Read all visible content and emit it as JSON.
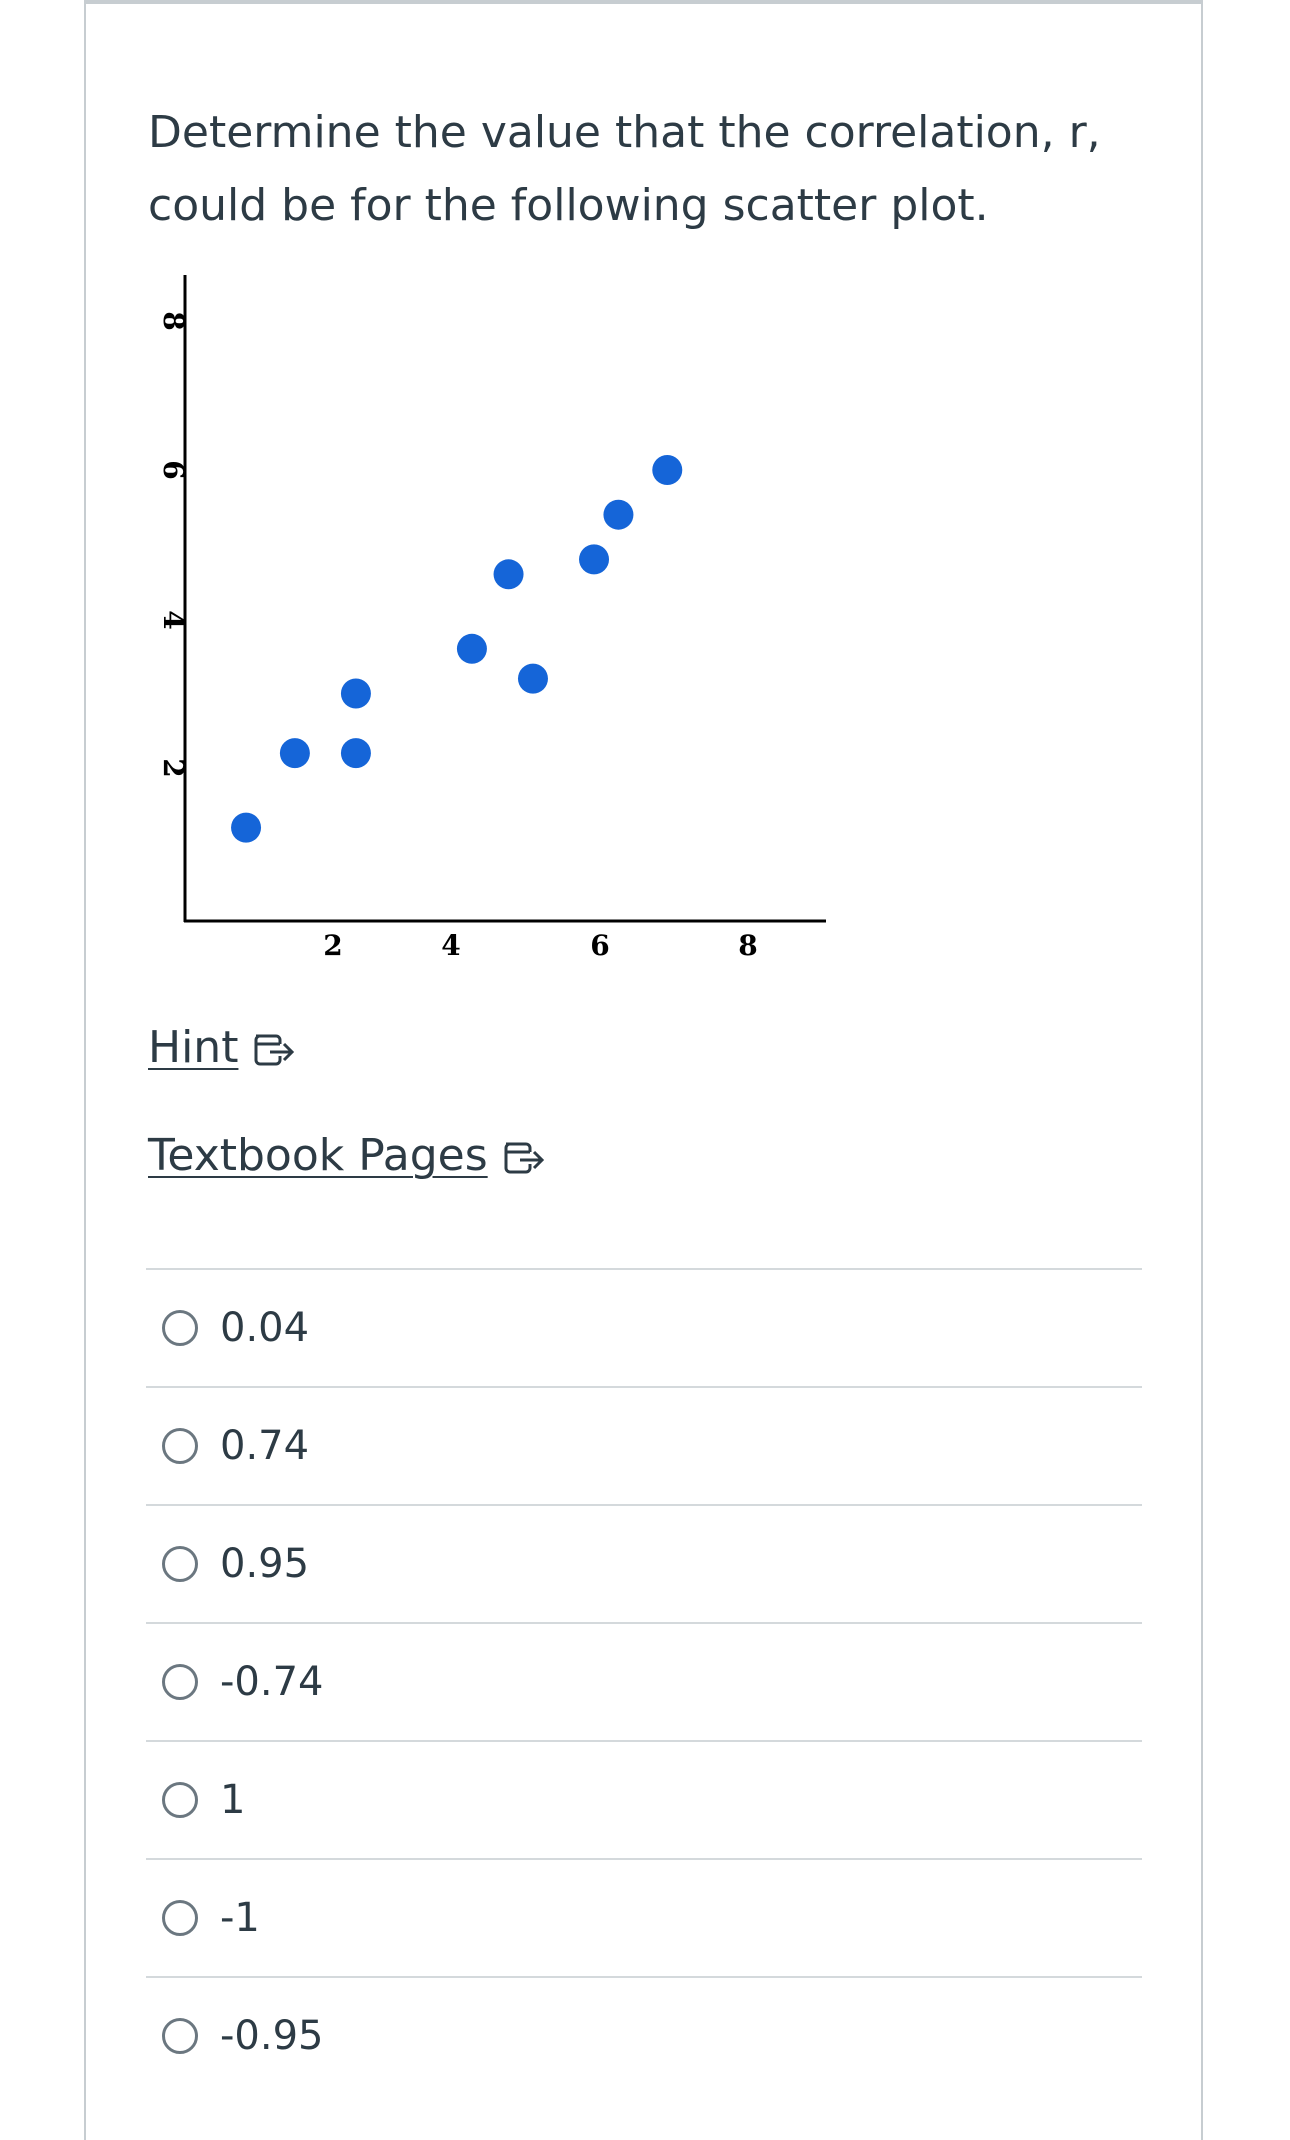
{
  "question": {
    "line1": "Determine the value that the correlation, r,",
    "line2": "could be for the following scatter plot."
  },
  "chart_data": {
    "type": "scatter",
    "title": "",
    "xlabel": "",
    "ylabel": "",
    "xlim": [
      0,
      10.5
    ],
    "ylim": [
      0,
      8.5
    ],
    "xticks": [
      "2",
      "4",
      "6",
      "8"
    ],
    "yticks": [
      "8",
      "6",
      "4",
      "2"
    ],
    "x": [
      1,
      1.8,
      2.8,
      2.8,
      4.7,
      5.3,
      5.7,
      6.7,
      7.1,
      7.9
    ],
    "y": [
      1.2,
      2.2,
      2.2,
      3.0,
      3.6,
      4.6,
      3.2,
      4.8,
      5.4,
      6.0
    ],
    "marker_color": "#1565d8"
  },
  "links": {
    "hint": "Hint",
    "textbook": "Textbook Pages"
  },
  "options": [
    {
      "label": "0.04"
    },
    {
      "label": "0.74"
    },
    {
      "label": "0.95"
    },
    {
      "label": "-0.74"
    },
    {
      "label": "1"
    },
    {
      "label": "-1"
    },
    {
      "label": "-0.95"
    }
  ]
}
